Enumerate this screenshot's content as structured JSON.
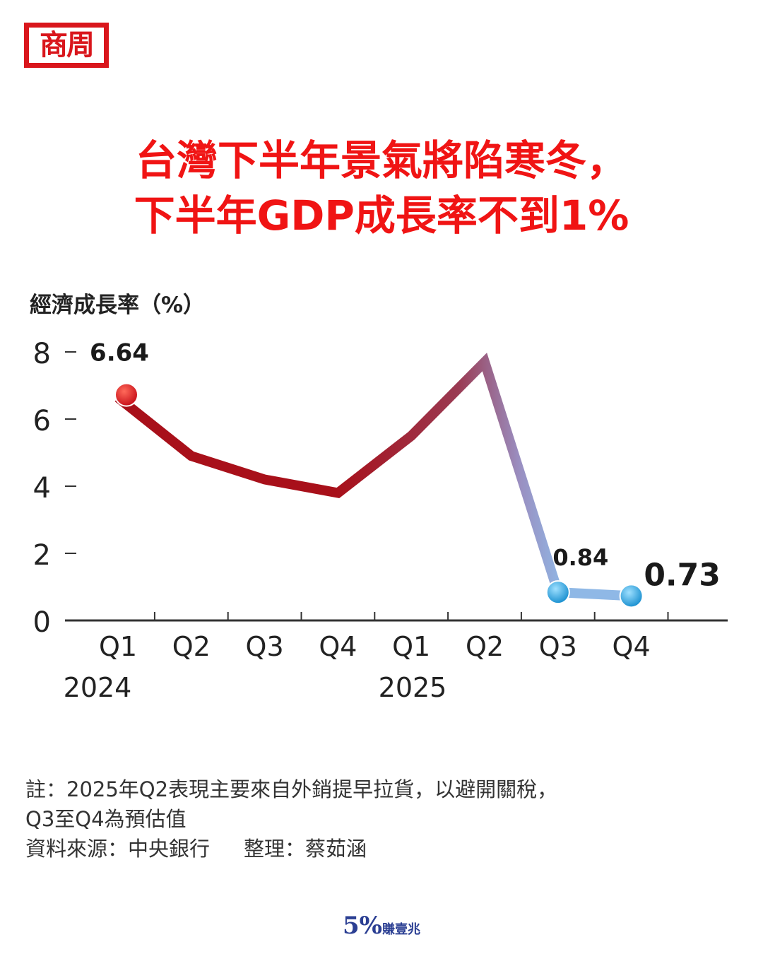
{
  "logo": {
    "text": "商周"
  },
  "title": {
    "line1": "台灣下半年景氣將陷寒冬，",
    "line2": "下半年GDP成長率不到1%"
  },
  "chart_data": {
    "type": "line",
    "ylabel": "經濟成長率（%）",
    "ylim": [
      0,
      8
    ],
    "yticks": [
      0,
      2,
      4,
      6,
      8
    ],
    "categories": [
      "Q1",
      "Q2",
      "Q3",
      "Q4",
      "Q1",
      "Q2",
      "Q3",
      "Q4"
    ],
    "year_labels": [
      {
        "label": "2024",
        "category_index": 0
      },
      {
        "label": "2025",
        "category_index": 4
      }
    ],
    "values": [
      6.64,
      4.9,
      4.2,
      3.8,
      5.5,
      7.7,
      0.84,
      0.73
    ],
    "labeled_points": [
      {
        "index": 0,
        "label": "6.64"
      },
      {
        "index": 6,
        "label": "0.84"
      },
      {
        "index": 7,
        "label": "0.73"
      }
    ],
    "colors": {
      "actual": "#b5121b",
      "forecast": "#8fb8e6",
      "marker_actual": "#e21b23",
      "marker_forecast": "#38a8e0"
    },
    "grid": false
  },
  "notes": {
    "line1": "註：2025年Q2表現主要來自外銷提早拉貨，以避開關稅，",
    "line2": "Q3至Q4為預估值",
    "source": "資料來源：中央銀行",
    "editor": "整理：蔡茹涵"
  },
  "footer": {
    "brand_big": "5%",
    "brand_small": "賺壹兆"
  }
}
